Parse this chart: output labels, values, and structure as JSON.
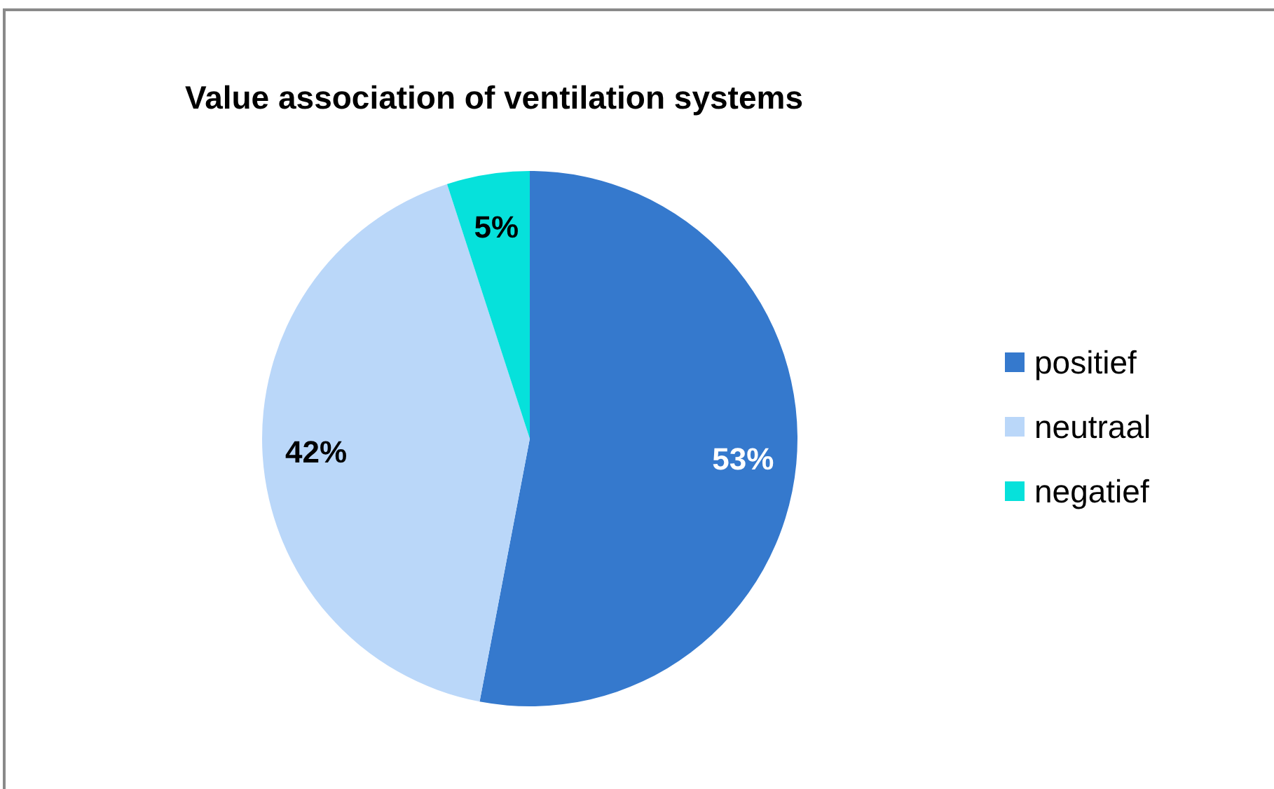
{
  "chart_data": {
    "type": "pie",
    "title": "Value association of ventilation systems",
    "categories": [
      "positief",
      "neutraal",
      "negatief"
    ],
    "values": [
      53,
      42,
      5
    ],
    "colors": [
      "#3579cd",
      "#bad7f9",
      "#06e1db"
    ],
    "value_labels": [
      "53%",
      "42%",
      "5%"
    ],
    "legend": "right"
  }
}
